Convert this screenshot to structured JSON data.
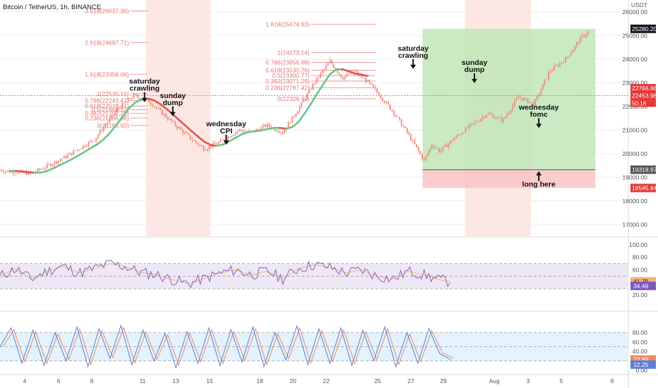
{
  "header": {
    "title": "Bitcoin / TetherUS, 1h, BINANCE",
    "currency": "USDT"
  },
  "colors": {
    "fib_line": "#ef9a9a",
    "fib_text": "#e57373",
    "fib_zone": "#fde7e3",
    "profit": "#bfe6b8",
    "loss": "#f8c4c4",
    "candle": "#ef8a7a",
    "ma_up": "#6cc58b",
    "ma_down": "#e25454",
    "rsi_line": "#7e57c2",
    "rsi_ma": "#f2c15c",
    "rsi_band": "#ede7f6",
    "stoch_k": "#5b7fd6",
    "stoch_d": "#f08a5d",
    "stoch_band": "#e3f2fd",
    "grid": "#eeeeee"
  },
  "chart_data": {
    "type": "candlestick",
    "title": "Bitcoin / TetherUS, 1h, BINANCE",
    "xlabel": "",
    "ylabel": "USDT",
    "y_ticks": [
      17000,
      18000,
      19000,
      20000,
      21000,
      22000,
      23000,
      24000,
      25000,
      26000
    ],
    "ylim": [
      16500,
      26500
    ],
    "x_ticks": [
      "4",
      "6",
      "8",
      "11",
      "13",
      "15",
      "18",
      "20",
      "22",
      "25",
      "27",
      "29",
      "Aug",
      "3",
      "5",
      "8"
    ],
    "price_path": [
      [
        0,
        19300
      ],
      [
        2,
        19150
      ],
      [
        4,
        19800
      ],
      [
        6,
        20600
      ],
      [
        7.5,
        21900
      ],
      [
        8.5,
        22450
      ],
      [
        9.5,
        22200
      ],
      [
        11,
        21300
      ],
      [
        12.2,
        20600
      ],
      [
        13,
        20200
      ],
      [
        14,
        20500
      ],
      [
        15.2,
        21000
      ],
      [
        16,
        20900
      ],
      [
        17,
        21200
      ],
      [
        18,
        20900
      ],
      [
        19.2,
        22100
      ],
      [
        20,
        23000
      ],
      [
        21,
        23900
      ],
      [
        21.8,
        23200
      ],
      [
        22.5,
        23500
      ],
      [
        23.3,
        23100
      ],
      [
        24,
        22600
      ],
      [
        25,
        21800
      ],
      [
        26,
        20800
      ],
      [
        27,
        19700
      ],
      [
        27.5,
        20400
      ],
      [
        28,
        20100
      ],
      [
        29,
        20700
      ],
      [
        30,
        21200
      ],
      [
        31,
        21700
      ],
      [
        32,
        21400
      ],
      [
        33,
        22400
      ],
      [
        34,
        22100
      ],
      [
        35,
        23500
      ],
      [
        36,
        24000
      ],
      [
        37,
        24900
      ],
      [
        37.5,
        25200
      ]
    ],
    "price_labels": {
      "last_price": "25280.20",
      "level_1": "22766.66",
      "level_2": "22453.98",
      "level_2_sub": "50:18",
      "entry": "19318.97",
      "stop": "18545.84"
    },
    "fib_sets": [
      {
        "levels": [
          {
            "label": "3.618(26037.36)",
            "value": 26037.36
          },
          {
            "label": "2.618(24697.71)",
            "value": 24697.71
          },
          {
            "label": "1.618(23358.06)",
            "value": 23358.06
          },
          {
            "label": "1(22530.15)",
            "value": 22530.15
          },
          {
            "label": "0.786(22243.47)",
            "value": 22243.47
          },
          {
            "label": "0.618(22018.41)",
            "value": 22018.41
          },
          {
            "label": "0.5(21860.32)",
            "value": 21860.32
          },
          {
            "label": "0.382(21702.25)",
            "value": 21702.25
          },
          {
            "label": "0.236(21506.66)",
            "value": 21506.66
          },
          {
            "label": "0(21190.50)",
            "value": 21190.5
          }
        ]
      },
      {
        "levels": [
          {
            "label": "1.618(25474.93)",
            "value": 25474.93
          },
          {
            "label": "1(24273.14)",
            "value": 24273.14
          },
          {
            "label": "0.786(23856.98)",
            "value": 23856.98
          },
          {
            "label": "0.618(23530.26)",
            "value": 23530.26
          },
          {
            "label": "0.5(23300.77)",
            "value": 23300.77
          },
          {
            "label": "0.382(23071.29)",
            "value": 23071.29
          },
          {
            "label": "0.236(22787.42)",
            "value": 22787.42
          },
          {
            "label": "0(22326.49)",
            "value": 22326.49
          }
        ]
      }
    ],
    "annotations": [
      {
        "text": "saturday crawling",
        "x": 9.2,
        "y": 22300
      },
      {
        "text": "sunday dump",
        "x": 11,
        "y": 21700
      },
      {
        "text": "wednesday CPI",
        "x": 14.4,
        "y": 20500
      },
      {
        "text": "saturday crawling",
        "x": 26.3,
        "y": 23700
      },
      {
        "text": "sunday dump",
        "x": 30.2,
        "y": 23100
      },
      {
        "text": "wednesday fomc",
        "x": 34.3,
        "y": 21200
      },
      {
        "text": "long here",
        "x": 34.3,
        "y": 18600
      }
    ],
    "position": {
      "entry": 19318.97,
      "target": 25280.2,
      "stop": 18545.84
    },
    "rsi": {
      "y_ticks": [
        20,
        40,
        60,
        80,
        100
      ],
      "band": [
        30,
        70
      ],
      "labels": {
        "rsi": "41.79",
        "ma": "34.49"
      },
      "points": [
        [
          0,
          50
        ],
        [
          1,
          62
        ],
        [
          2,
          45
        ],
        [
          3,
          58
        ],
        [
          4,
          66
        ],
        [
          5,
          55
        ],
        [
          6,
          62
        ],
        [
          7,
          70
        ],
        [
          8,
          65
        ],
        [
          9,
          56
        ],
        [
          10,
          52
        ],
        [
          11,
          44
        ],
        [
          12,
          38
        ],
        [
          13,
          46
        ],
        [
          14,
          55
        ],
        [
          15,
          60
        ],
        [
          16,
          52
        ],
        [
          17,
          58
        ],
        [
          18,
          46
        ],
        [
          19,
          62
        ],
        [
          20,
          68
        ],
        [
          21,
          64
        ],
        [
          22,
          55
        ],
        [
          23,
          60
        ],
        [
          24,
          50
        ],
        [
          25,
          45
        ],
        [
          26,
          58
        ],
        [
          27,
          52
        ],
        [
          28,
          44
        ],
        [
          28.7,
          41.8
        ]
      ]
    },
    "stoch": {
      "y_ticks": [
        0,
        20,
        40,
        60,
        80
      ],
      "band": [
        20,
        80
      ],
      "labels": {
        "k": "22.89",
        "d": "12.25"
      },
      "points": [
        [
          0,
          50
        ],
        [
          0.7,
          90
        ],
        [
          1.4,
          15
        ],
        [
          2.1,
          85
        ],
        [
          2.8,
          10
        ],
        [
          3.5,
          80
        ],
        [
          4.2,
          20
        ],
        [
          4.9,
          92
        ],
        [
          5.6,
          8
        ],
        [
          6.3,
          88
        ],
        [
          7,
          25
        ],
        [
          7.7,
          95
        ],
        [
          8.4,
          12
        ],
        [
          9.1,
          85
        ],
        [
          9.8,
          20
        ],
        [
          10.5,
          78
        ],
        [
          11.2,
          6
        ],
        [
          11.9,
          82
        ],
        [
          12.6,
          15
        ],
        [
          13.3,
          90
        ],
        [
          14,
          10
        ],
        [
          14.7,
          86
        ],
        [
          15.4,
          18
        ],
        [
          16.1,
          92
        ],
        [
          16.8,
          8
        ],
        [
          17.5,
          80
        ],
        [
          18.2,
          22
        ],
        [
          18.9,
          94
        ],
        [
          19.6,
          12
        ],
        [
          20.3,
          88
        ],
        [
          21,
          15
        ],
        [
          21.7,
          90
        ],
        [
          22.4,
          10
        ],
        [
          23.1,
          85
        ],
        [
          23.8,
          20
        ],
        [
          24.5,
          92
        ],
        [
          25.2,
          8
        ],
        [
          25.9,
          80
        ],
        [
          26.6,
          15
        ],
        [
          27.3,
          88
        ],
        [
          28,
          35
        ],
        [
          28.7,
          22.9
        ]
      ]
    }
  }
}
